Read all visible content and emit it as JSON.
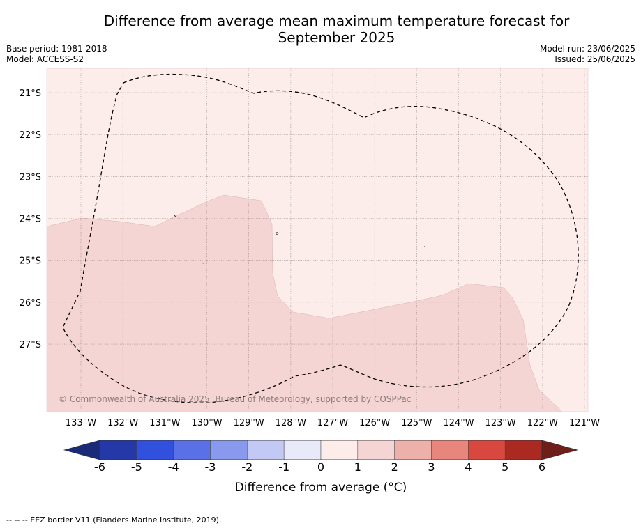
{
  "header": {
    "title_line1": "Difference from average mean maximum temperature forecast for",
    "title_line2": "September 2025",
    "base_period": "Base period: 1981-2018",
    "model": "Model: ACCESS-S2",
    "model_run": "Model run: 23/06/2025",
    "issued": "Issued: 25/06/2025"
  },
  "map": {
    "lon_range": [
      -133.8,
      -120.9
    ],
    "lat_range": [
      -28.6,
      -20.4
    ],
    "lat_ticks": [
      {
        "value": -21,
        "label": "21°S"
      },
      {
        "value": -22,
        "label": "22°S"
      },
      {
        "value": -23,
        "label": "23°S"
      },
      {
        "value": -24,
        "label": "24°S"
      },
      {
        "value": -25,
        "label": "25°S"
      },
      {
        "value": -26,
        "label": "26°S"
      },
      {
        "value": -27,
        "label": "27°S"
      }
    ],
    "lon_ticks": [
      {
        "value": -133,
        "label": "133°W"
      },
      {
        "value": -132,
        "label": "132°W"
      },
      {
        "value": -131,
        "label": "131°W"
      },
      {
        "value": -130,
        "label": "130°W"
      },
      {
        "value": -129,
        "label": "129°W"
      },
      {
        "value": -128,
        "label": "128°W"
      },
      {
        "value": -127,
        "label": "127°W"
      },
      {
        "value": -126,
        "label": "126°W"
      },
      {
        "value": -125,
        "label": "125°W"
      },
      {
        "value": -124,
        "label": "124°W"
      },
      {
        "value": -123,
        "label": "123°W"
      },
      {
        "value": -122,
        "label": "122°W"
      },
      {
        "value": -121,
        "label": "121°W"
      }
    ],
    "background_class": {
      "range": "0 to 1",
      "color": "#fcecea"
    },
    "region_class": {
      "range": "1 to 2",
      "color": "#f5d5d3"
    },
    "copyright": "© Commonwealth of Australia 2025, Bureau of Meteorology, supported by COSPPac"
  },
  "colorbar": {
    "title": "Difference from average (°C)",
    "labels": [
      "-6",
      "-5",
      "-4",
      "-3",
      "-2",
      "-1",
      "0",
      "1",
      "2",
      "3",
      "4",
      "5",
      "6"
    ],
    "under_color": "#1a2a78",
    "over_color": "#6e1f1a",
    "colors": [
      "#2538a8",
      "#3050dd",
      "#5a70e6",
      "#8899ee",
      "#c2c9f4",
      "#e8eafa",
      "#fcecea",
      "#f5d5d3",
      "#eeb0aa",
      "#e8867e",
      "#d9483e",
      "#aa2a22"
    ]
  },
  "footnote": "-- -- -- EEZ border V11 (Flanders Marine Institute, 2019)."
}
